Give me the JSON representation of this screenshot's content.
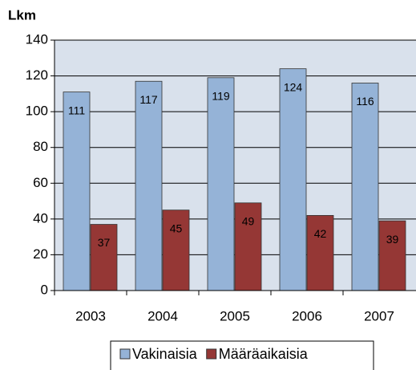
{
  "chart_data": {
    "type": "bar",
    "y_label": "Lkm",
    "categories": [
      "2003",
      "2004",
      "2005",
      "2006",
      "2007"
    ],
    "series": [
      {
        "name": "Vakinaisia",
        "color": "#95b3d7",
        "values": [
          111,
          117,
          119,
          124,
          116
        ]
      },
      {
        "name": "Määräaikaisia",
        "color": "#953735",
        "values": [
          37,
          45,
          49,
          42,
          39
        ]
      }
    ],
    "ylim": [
      0,
      140
    ],
    "yticks": [
      0,
      20,
      40,
      60,
      80,
      100,
      120,
      140
    ],
    "grid": true,
    "legend": "bottom",
    "plot_background": "#d9e1ec"
  }
}
